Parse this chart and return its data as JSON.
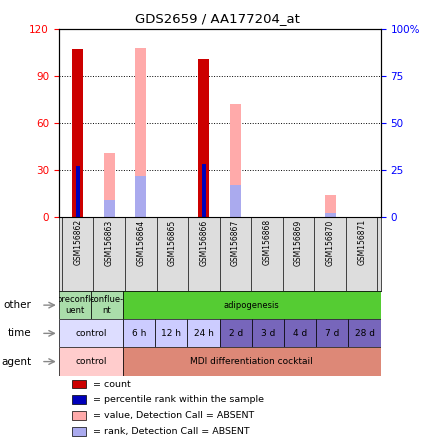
{
  "title": "GDS2659 / AA177204_at",
  "samples": [
    "GSM156862",
    "GSM156863",
    "GSM156864",
    "GSM156865",
    "GSM156866",
    "GSM156867",
    "GSM156868",
    "GSM156869",
    "GSM156870",
    "GSM156871"
  ],
  "count_values": [
    107,
    0,
    0,
    0,
    101,
    0,
    0,
    0,
    0,
    0
  ],
  "percentile_values": [
    27,
    0,
    0,
    0,
    28,
    0,
    0,
    0,
    0,
    0
  ],
  "value_absent": [
    0,
    41,
    108,
    0,
    0,
    72,
    0,
    0,
    14,
    0
  ],
  "rank_absent": [
    0,
    9,
    22,
    0,
    0,
    17,
    0,
    0,
    2,
    0
  ],
  "ylim_left": [
    0,
    120
  ],
  "yticks_left": [
    0,
    30,
    60,
    90,
    120
  ],
  "ylim_right": [
    0,
    100
  ],
  "yticks_right": [
    0,
    25,
    50,
    75,
    100
  ],
  "color_count": "#cc0000",
  "color_percentile": "#0000bb",
  "color_value_absent": "#ffaaaa",
  "color_rank_absent": "#aaaaee",
  "other_data": [
    [
      0,
      1,
      "preconfl-\nuent",
      "#aaddaa"
    ],
    [
      1,
      2,
      "conflue-\nnt",
      "#aaddaa"
    ],
    [
      2,
      10,
      "adipogenesis",
      "#55cc33"
    ]
  ],
  "time_data": [
    [
      0,
      2,
      "control",
      "#ddddff"
    ],
    [
      2,
      3,
      "6 h",
      "#ccccff"
    ],
    [
      3,
      4,
      "12 h",
      "#ccccff"
    ],
    [
      4,
      5,
      "24 h",
      "#ccccff"
    ],
    [
      5,
      6,
      "2 d",
      "#7766bb"
    ],
    [
      6,
      7,
      "3 d",
      "#7766bb"
    ],
    [
      7,
      8,
      "4 d",
      "#7766bb"
    ],
    [
      8,
      9,
      "7 d",
      "#7766bb"
    ],
    [
      9,
      10,
      "28 d",
      "#7766bb"
    ]
  ],
  "agent_data": [
    [
      0,
      2,
      "control",
      "#ffcccc"
    ],
    [
      2,
      10,
      "MDI differentiation cocktail",
      "#dd8877"
    ]
  ],
  "legend_items": [
    "count",
    "percentile rank within the sample",
    "value, Detection Call = ABSENT",
    "rank, Detection Call = ABSENT"
  ],
  "legend_colors": [
    "#cc0000",
    "#0000bb",
    "#ffaaaa",
    "#aaaaee"
  ],
  "n_samples": 10
}
